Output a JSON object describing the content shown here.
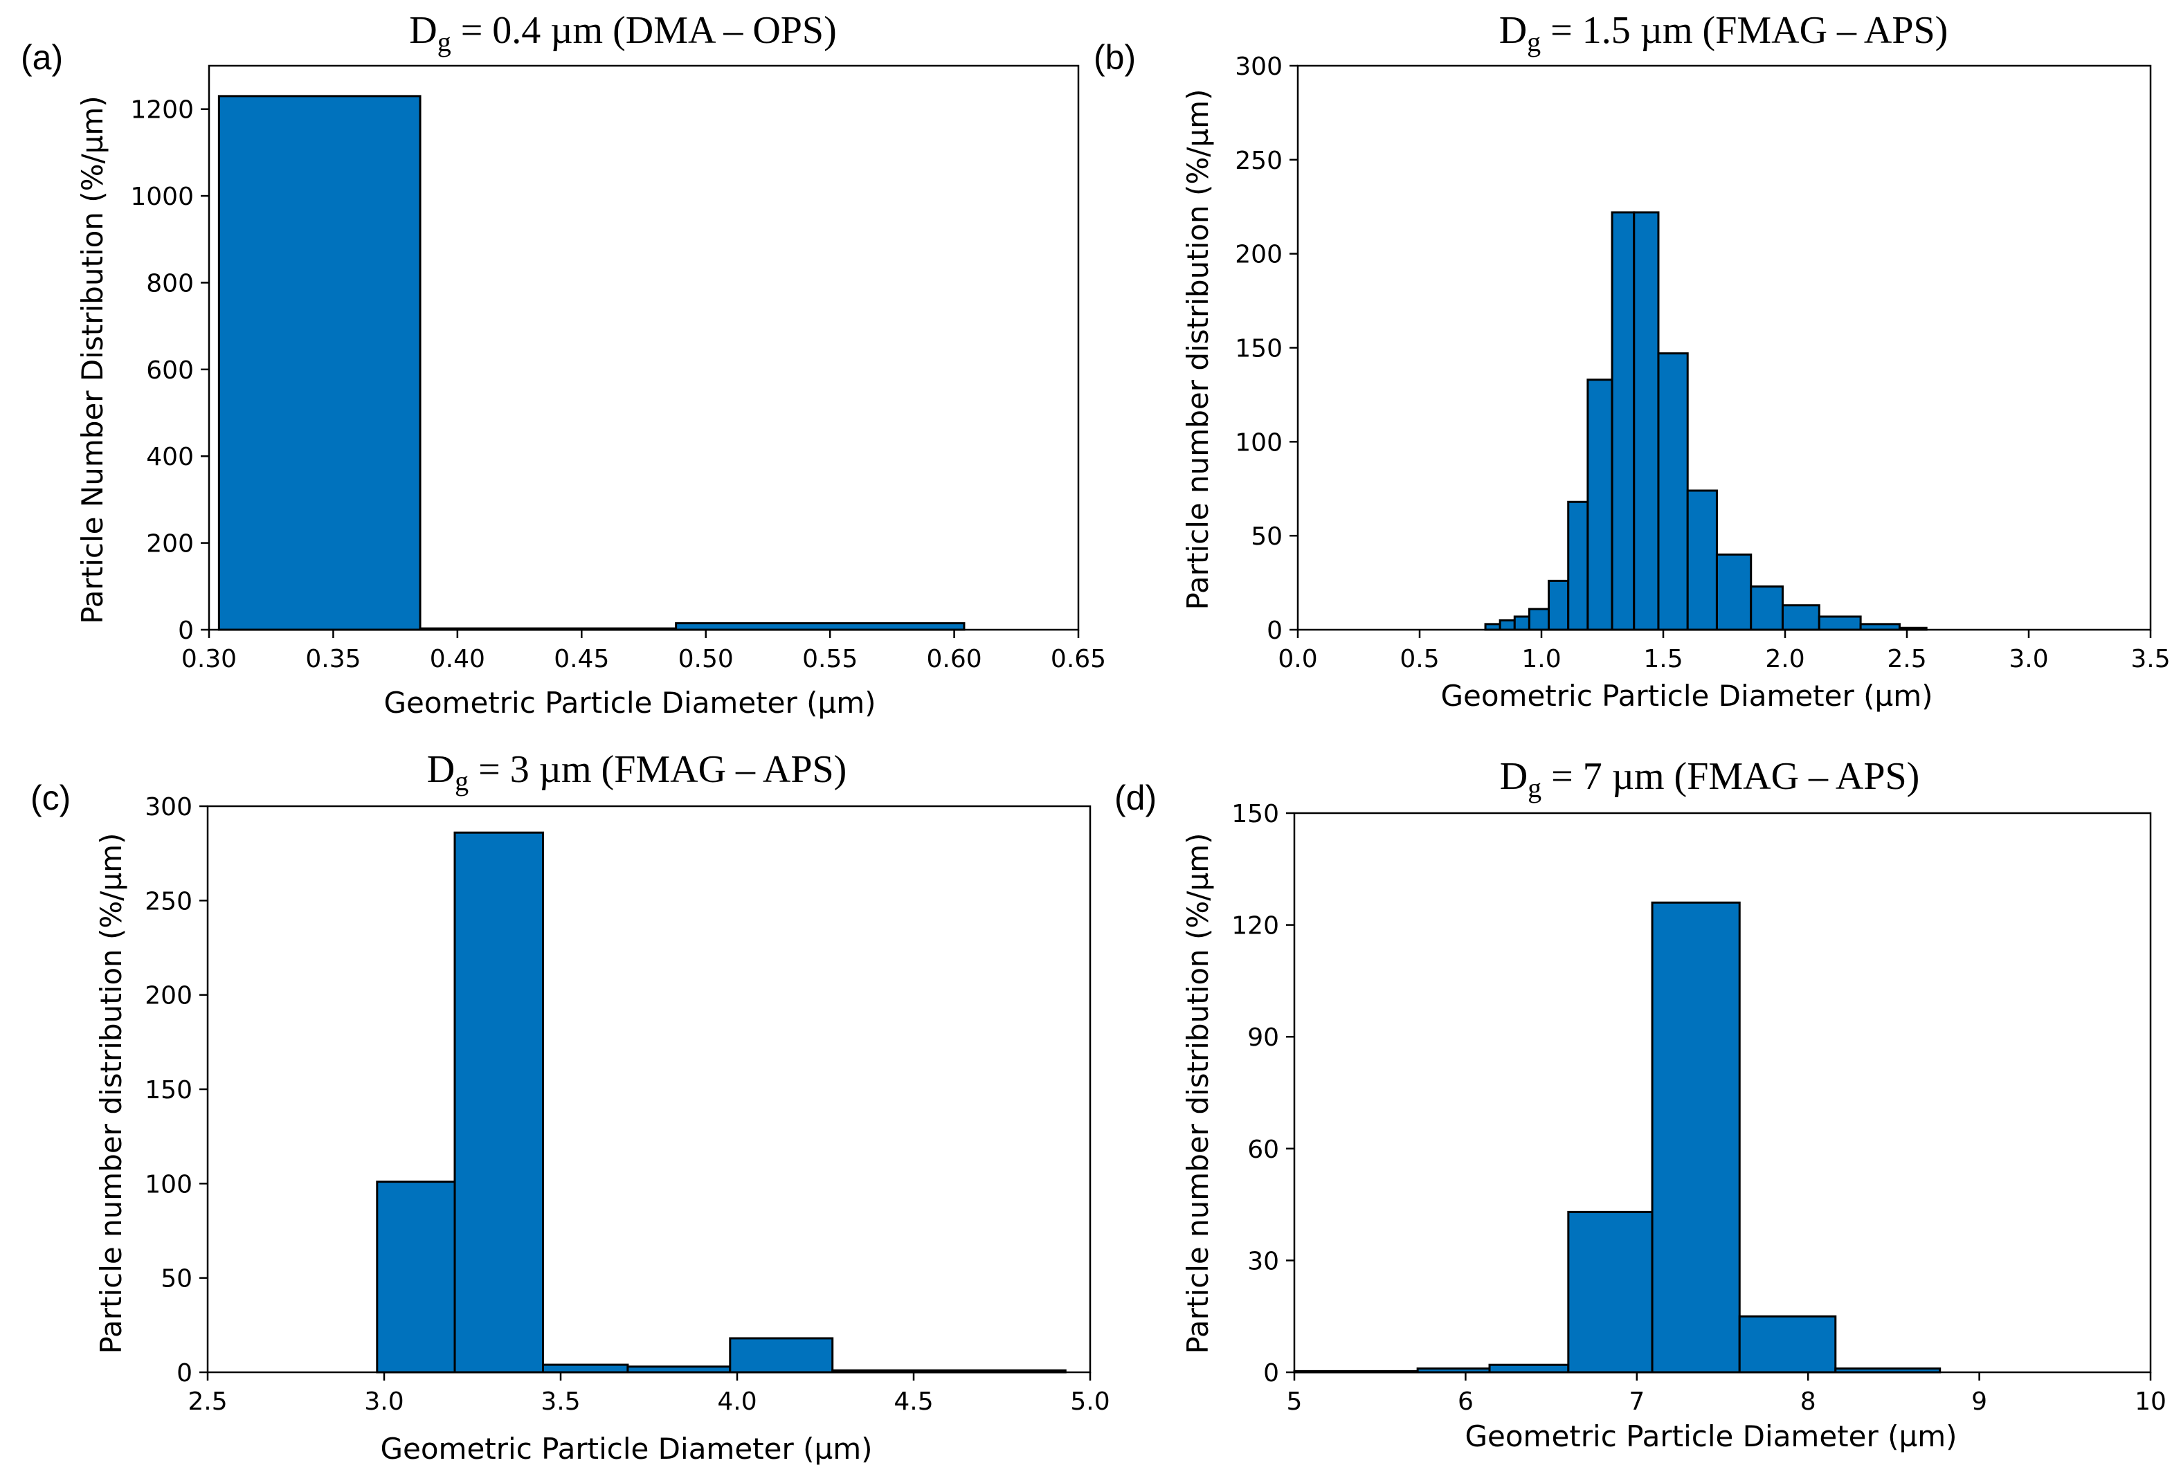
{
  "figure": {
    "bar_color": "#0072bd",
    "edge_color": "#000000"
  },
  "chart_data": [
    {
      "type": "bar",
      "panel_label": "(a)",
      "title_prefix": "D",
      "title_sub": "g",
      "title_suffix": " = 0.4 µm (DMA – OPS)",
      "xlabel": "Geometric Particle Diameter (µm)",
      "ylabel": "Particle Number Distribution (%/µm)",
      "xlim": [
        0.3,
        0.65
      ],
      "ylim": [
        0,
        1300
      ],
      "xticks": [
        0.3,
        0.35,
        0.4,
        0.45,
        0.5,
        0.55,
        0.6,
        0.65
      ],
      "xtick_labels": [
        "0.30",
        "0.35",
        "0.40",
        "0.45",
        "0.50",
        "0.55",
        "0.60",
        "0.65"
      ],
      "yticks": [
        0,
        200,
        400,
        600,
        800,
        1000,
        1200
      ],
      "ytick_labels": [
        "0",
        "200",
        "400",
        "600",
        "800",
        "1000",
        "1200"
      ],
      "bins": [
        {
          "x0": 0.304,
          "x1": 0.385,
          "value": 1230
        },
        {
          "x0": 0.385,
          "x1": 0.488,
          "value": 3
        },
        {
          "x0": 0.488,
          "x1": 0.604,
          "value": 15
        }
      ]
    },
    {
      "type": "bar",
      "panel_label": "(b)",
      "title_prefix": "D",
      "title_sub": "g",
      "title_suffix": " = 1.5 µm (FMAG – APS)",
      "xlabel": "Geometric Particle Diameter (µm)",
      "ylabel": "Particle number distribution (%/µm)",
      "xlim": [
        0.0,
        3.5
      ],
      "ylim": [
        0,
        300
      ],
      "xticks": [
        0.0,
        0.5,
        1.0,
        1.5,
        2.0,
        2.5,
        3.0,
        3.5
      ],
      "xtick_labels": [
        "0.0",
        "0.5",
        "1.0",
        "1.5",
        "2.0",
        "2.5",
        "3.0",
        "3.5"
      ],
      "yticks": [
        0,
        50,
        100,
        150,
        200,
        250,
        300
      ],
      "ytick_labels": [
        "0",
        "50",
        "100",
        "150",
        "200",
        "250",
        "300"
      ],
      "bins": [
        {
          "x0": 0.77,
          "x1": 0.83,
          "value": 3
        },
        {
          "x0": 0.83,
          "x1": 0.89,
          "value": 5
        },
        {
          "x0": 0.89,
          "x1": 0.95,
          "value": 7
        },
        {
          "x0": 0.95,
          "x1": 1.03,
          "value": 11
        },
        {
          "x0": 1.03,
          "x1": 1.11,
          "value": 26
        },
        {
          "x0": 1.11,
          "x1": 1.19,
          "value": 68
        },
        {
          "x0": 1.19,
          "x1": 1.29,
          "value": 133
        },
        {
          "x0": 1.29,
          "x1": 1.38,
          "value": 222
        },
        {
          "x0": 1.38,
          "x1": 1.48,
          "value": 222
        },
        {
          "x0": 1.48,
          "x1": 1.6,
          "value": 147
        },
        {
          "x0": 1.6,
          "x1": 1.72,
          "value": 74
        },
        {
          "x0": 1.72,
          "x1": 1.86,
          "value": 40
        },
        {
          "x0": 1.86,
          "x1": 1.99,
          "value": 23
        },
        {
          "x0": 1.99,
          "x1": 2.14,
          "value": 13
        },
        {
          "x0": 2.14,
          "x1": 2.31,
          "value": 7
        },
        {
          "x0": 2.31,
          "x1": 2.47,
          "value": 3
        },
        {
          "x0": 2.47,
          "x1": 2.58,
          "value": 1
        }
      ]
    },
    {
      "type": "bar",
      "panel_label": "(c)",
      "title_prefix": "D",
      "title_sub": "g",
      "title_suffix": " = 3 µm (FMAG – APS)",
      "xlabel": "Geometric Particle Diameter (µm)",
      "ylabel": "Particle number distribution (%/µm)",
      "xlim": [
        2.5,
        5.0
      ],
      "ylim": [
        0,
        300
      ],
      "xticks": [
        2.5,
        3.0,
        3.5,
        4.0,
        4.5,
        5.0
      ],
      "xtick_labels": [
        "2.5",
        "3.0",
        "3.5",
        "4.0",
        "4.5",
        "5.0"
      ],
      "yticks": [
        0,
        50,
        100,
        150,
        200,
        250,
        300
      ],
      "ytick_labels": [
        "0",
        "50",
        "100",
        "150",
        "200",
        "250",
        "300"
      ],
      "bins": [
        {
          "x0": 2.98,
          "x1": 3.2,
          "value": 101
        },
        {
          "x0": 3.2,
          "x1": 3.45,
          "value": 286
        },
        {
          "x0": 3.45,
          "x1": 3.69,
          "value": 4
        },
        {
          "x0": 3.69,
          "x1": 3.98,
          "value": 3
        },
        {
          "x0": 3.98,
          "x1": 4.27,
          "value": 18
        },
        {
          "x0": 4.27,
          "x1": 4.93,
          "value": 1
        }
      ]
    },
    {
      "type": "bar",
      "panel_label": "(d)",
      "title_prefix": "D",
      "title_sub": "g",
      "title_suffix": " = 7 µm (FMAG – APS)",
      "xlabel": "Geometric Particle Diameter (µm)",
      "ylabel": "Particle number distribution (%/µm)",
      "xlim": [
        5,
        10
      ],
      "ylim": [
        0,
        150
      ],
      "xticks": [
        5,
        6,
        7,
        8,
        9,
        10
      ],
      "xtick_labels": [
        "5",
        "6",
        "7",
        "8",
        "9",
        "10"
      ],
      "yticks": [
        0,
        30,
        60,
        90,
        120,
        150
      ],
      "ytick_labels": [
        "0",
        "30",
        "60",
        "90",
        "120",
        "150"
      ],
      "bins": [
        {
          "x0": 5.0,
          "x1": 5.72,
          "value": 0.3
        },
        {
          "x0": 5.72,
          "x1": 6.14,
          "value": 1
        },
        {
          "x0": 6.14,
          "x1": 6.6,
          "value": 2
        },
        {
          "x0": 6.6,
          "x1": 7.09,
          "value": 43
        },
        {
          "x0": 7.09,
          "x1": 7.6,
          "value": 126
        },
        {
          "x0": 7.6,
          "x1": 8.16,
          "value": 15
        },
        {
          "x0": 8.16,
          "x1": 8.77,
          "value": 1
        }
      ]
    }
  ]
}
